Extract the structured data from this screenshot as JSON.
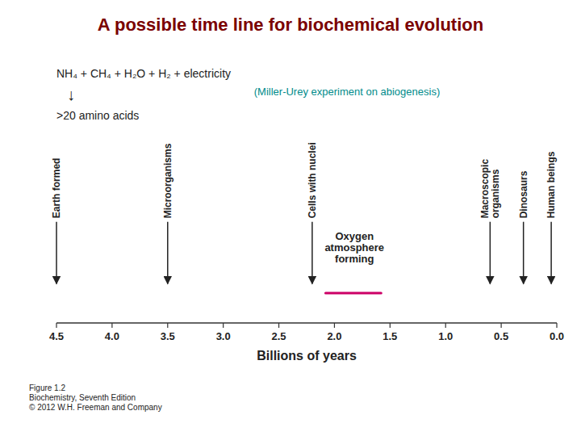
{
  "chart_data": {
    "type": "timeline",
    "title": "A possible time line for biochemical evolution",
    "title_color": "#7a0000",
    "x_label": "Billions of years",
    "xlim": [
      4.5,
      0.0
    ],
    "xticks": [
      4.5,
      {
        "value": 4.0,
        "label": "4.0"
      },
      3.5,
      {
        "value": 3.0,
        "label": "3.0"
      },
      2.5,
      {
        "value": 2.0,
        "label": "2.0"
      },
      1.5,
      {
        "value": 1.0,
        "label": "1.0"
      },
      0.5,
      {
        "value": 0.0,
        "label": "0.0"
      }
    ],
    "x": [
      4.5,
      3.5,
      2.2,
      0.6,
      0.3,
      0.05
    ],
    "categories": [
      "Earth formed",
      "Microorganisms",
      "Cells with nuclei",
      "Macroscopic\norganisms",
      "Dinosaurs",
      "Human beings"
    ],
    "formula": "NH₄ + CH₄ + H₂O + H₂  + electricity",
    "formula_arrow": "↓",
    "product": ">20 amino acids",
    "note": {
      "text": "(Miller-Urey experiment on abiogenesis)",
      "color": "#008b8b"
    },
    "oxygen_note": {
      "text": "Oxygen\natmosphere\nforming",
      "x": 1.82
    },
    "highlight": {
      "x": [
        1.58,
        2.08
      ],
      "color": "#cc0066"
    },
    "caption": "Figure 1.2\nBiochemistry, Seventh Edition\n© 2012 W.H. Freeman and Company"
  }
}
